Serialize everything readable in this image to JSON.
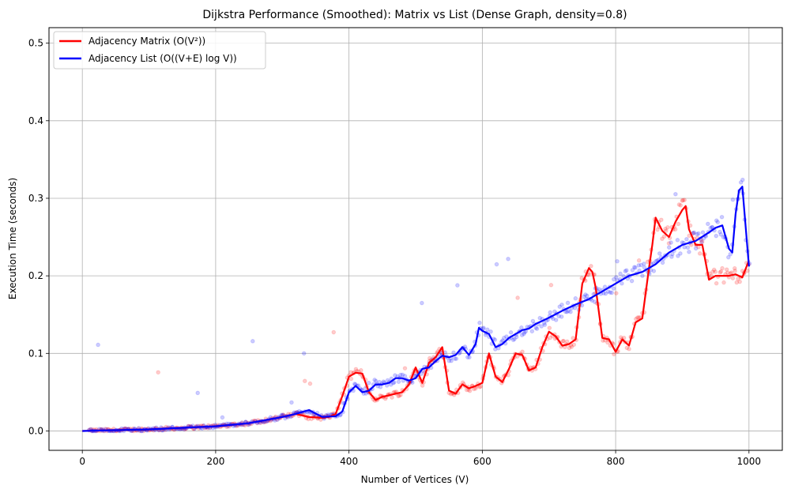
{
  "chart_data": {
    "type": "line",
    "title": "Dijkstra Performance (Smoothed): Matrix vs List (Dense Graph, density=0.8)",
    "xlabel": "Number of Vertices (V)",
    "ylabel": "Execution Time (seconds)",
    "xlim": [
      -50,
      1050
    ],
    "ylim": [
      -0.025,
      0.52
    ],
    "xticks": [
      0,
      200,
      400,
      600,
      800,
      1000
    ],
    "xtick_labels": [
      "0",
      "200",
      "400",
      "600",
      "800",
      "1000"
    ],
    "yticks": [
      0.0,
      0.1,
      0.2,
      0.3,
      0.4,
      0.5
    ],
    "ytick_labels": [
      "0.0",
      "0.1",
      "0.2",
      "0.3",
      "0.4",
      "0.5"
    ],
    "grid": true,
    "legend_position": "upper-left",
    "series": [
      {
        "name": "Adjacency Matrix (O(V²))",
        "color": "#ff0000",
        "x": [
          0,
          50,
          100,
          150,
          200,
          250,
          300,
          320,
          340,
          360,
          370,
          380,
          390,
          400,
          410,
          420,
          430,
          440,
          450,
          460,
          470,
          480,
          490,
          500,
          510,
          520,
          530,
          540,
          550,
          560,
          570,
          580,
          590,
          600,
          610,
          620,
          630,
          640,
          650,
          660,
          670,
          680,
          690,
          700,
          710,
          720,
          730,
          740,
          750,
          760,
          765,
          770,
          780,
          790,
          800,
          810,
          820,
          830,
          840,
          850,
          855,
          860,
          870,
          880,
          890,
          900,
          905,
          910,
          920,
          930,
          940,
          950,
          960,
          970,
          980,
          990,
          1000
        ],
        "y": [
          0.0,
          0.001,
          0.002,
          0.004,
          0.006,
          0.01,
          0.018,
          0.022,
          0.018,
          0.017,
          0.018,
          0.022,
          0.045,
          0.07,
          0.075,
          0.074,
          0.05,
          0.04,
          0.044,
          0.046,
          0.048,
          0.05,
          0.06,
          0.082,
          0.062,
          0.088,
          0.095,
          0.108,
          0.052,
          0.048,
          0.06,
          0.055,
          0.058,
          0.062,
          0.1,
          0.07,
          0.063,
          0.08,
          0.1,
          0.098,
          0.078,
          0.082,
          0.108,
          0.128,
          0.122,
          0.11,
          0.112,
          0.118,
          0.19,
          0.21,
          0.205,
          0.185,
          0.12,
          0.118,
          0.102,
          0.118,
          0.11,
          0.14,
          0.145,
          0.21,
          0.24,
          0.275,
          0.258,
          0.25,
          0.27,
          0.285,
          0.29,
          0.26,
          0.24,
          0.24,
          0.195,
          0.2,
          0.2,
          0.2,
          0.202,
          0.198,
          0.22
        ]
      },
      {
        "name": "Adjacency List (O((V+E) log V))",
        "color": "#0000ff",
        "x": [
          0,
          50,
          100,
          150,
          200,
          250,
          300,
          320,
          340,
          360,
          380,
          390,
          400,
          410,
          420,
          430,
          440,
          450,
          460,
          470,
          480,
          490,
          500,
          510,
          520,
          530,
          540,
          550,
          560,
          570,
          580,
          590,
          595,
          600,
          610,
          620,
          630,
          640,
          650,
          660,
          670,
          680,
          690,
          700,
          720,
          740,
          760,
          780,
          800,
          820,
          840,
          860,
          880,
          900,
          920,
          940,
          950,
          960,
          970,
          975,
          980,
          985,
          990,
          1000
        ],
        "y": [
          0.0,
          0.001,
          0.002,
          0.004,
          0.006,
          0.01,
          0.018,
          0.022,
          0.027,
          0.018,
          0.019,
          0.025,
          0.05,
          0.058,
          0.05,
          0.052,
          0.06,
          0.06,
          0.062,
          0.068,
          0.068,
          0.065,
          0.068,
          0.08,
          0.082,
          0.09,
          0.097,
          0.095,
          0.098,
          0.108,
          0.098,
          0.112,
          0.133,
          0.129,
          0.125,
          0.108,
          0.112,
          0.12,
          0.125,
          0.13,
          0.132,
          0.138,
          0.142,
          0.146,
          0.155,
          0.163,
          0.17,
          0.18,
          0.19,
          0.2,
          0.205,
          0.215,
          0.23,
          0.24,
          0.245,
          0.256,
          0.262,
          0.265,
          0.235,
          0.23,
          0.28,
          0.31,
          0.315,
          0.212
        ]
      }
    ],
    "scatter_note_series": [
      {
        "name_ref": "Adjacency Matrix (O(V²))",
        "color": "#ff0000",
        "alpha": 0.2
      },
      {
        "name_ref": "Adjacency List (O((V+E) log V))",
        "color": "#0000ff",
        "alpha": 0.2
      }
    ]
  }
}
